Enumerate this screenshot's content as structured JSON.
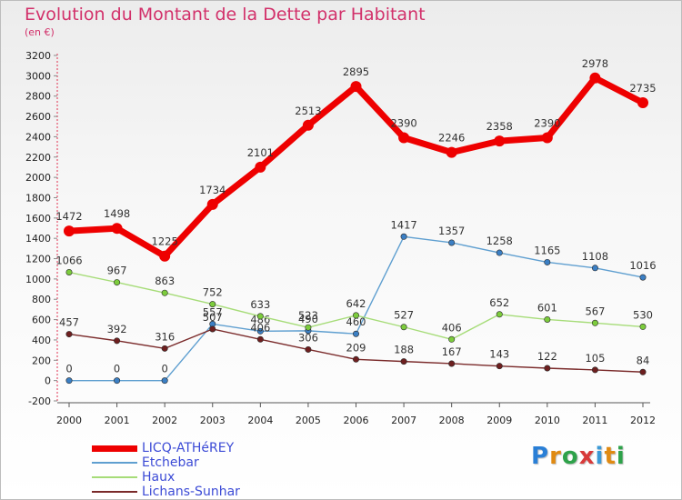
{
  "header": {
    "title": "Evolution du Montant de la Dette par Habitant",
    "unit": "(en €)"
  },
  "logo": {
    "letters": [
      "P",
      "r",
      "o",
      "x",
      "i",
      "t",
      "i"
    ],
    "colors": [
      "#2a7fd6",
      "#e08a12",
      "#2ea24a",
      "#d83a3a",
      "#3c9ad6",
      "#e08a12",
      "#2ea24a"
    ]
  },
  "chart_data": {
    "type": "line",
    "title": "Evolution du Montant de la Dette par Habitant",
    "ylabel": "(en €)",
    "xlabel": "",
    "x": [
      "2000",
      "2001",
      "2002",
      "2003",
      "2004",
      "2005",
      "2006",
      "2007",
      "2008",
      "2009",
      "2010",
      "2011",
      "2012"
    ],
    "ylim": [
      -200,
      3200
    ],
    "yticks": [
      -200,
      0,
      200,
      400,
      600,
      800,
      1000,
      1200,
      1400,
      1600,
      1800,
      2000,
      2200,
      2400,
      2600,
      2800,
      3000,
      3200
    ],
    "grid": false,
    "legend_position": "bottom-left",
    "series": [
      {
        "name": "LICQ-ATHéREY",
        "color": "#ee0000",
        "width": 7,
        "marker": "#ee0000",
        "values": [
          1472,
          1498,
          1225,
          1734,
          2101,
          2513,
          2895,
          2390,
          2246,
          2358,
          2390,
          2978,
          2735
        ]
      },
      {
        "name": "Etchebar",
        "color": "#5f9fd0",
        "width": 1.4,
        "marker": "#3b7fc4",
        "values": [
          0,
          0,
          0,
          557,
          486,
          490,
          460,
          1417,
          1357,
          1258,
          1165,
          1108,
          1016
        ]
      },
      {
        "name": "Haux",
        "color": "#a6dc78",
        "width": 1.4,
        "marker": "#7ccc3c",
        "values": [
          1066,
          967,
          863,
          752,
          633,
          523,
          642,
          527,
          406,
          652,
          601,
          567,
          530
        ]
      },
      {
        "name": "Lichans-Sunhar",
        "color": "#7a2a2a",
        "width": 1.4,
        "marker": "#6e1f1f",
        "values": [
          457,
          392,
          316,
          507,
          406,
          306,
          209,
          188,
          167,
          143,
          122,
          105,
          84
        ]
      }
    ]
  }
}
